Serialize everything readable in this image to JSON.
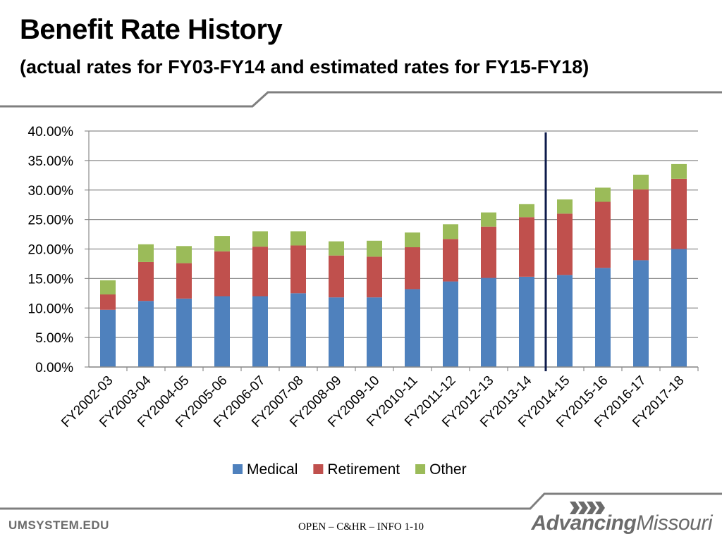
{
  "slide": {
    "title": "Benefit Rate History",
    "subtitle": "(actual rates for FY03-FY14 and estimated rates for FY15-FY18)",
    "footer_left": "UMSYSTEM.EDU",
    "footer_center": "OPEN – C&HR – INFO 1-10",
    "brand_part1": "Advancing",
    "brand_part2": "Missouri"
  },
  "colors": {
    "medical": "#4f81bd",
    "retirement": "#c0504d",
    "other": "#9bbb59",
    "divider_line": "#0d1b4b",
    "grid": "#8c8c8c",
    "rule": "#7f7f7f"
  },
  "chart_data": {
    "type": "bar",
    "stacked": true,
    "categories": [
      "FY2002-03",
      "FY2003-04",
      "FY2004-05",
      "FY2005-06",
      "FY2006-07",
      "FY2007-08",
      "FY2008-09",
      "FY2009-10",
      "FY2010-11",
      "FY2011-12",
      "FY2012-13",
      "FY2013-14",
      "FY2014-15",
      "FY2015-16",
      "FY2016-17",
      "FY2017-18"
    ],
    "series": [
      {
        "name": "Medical",
        "values": [
          9.7,
          11.2,
          11.6,
          12.0,
          12.0,
          12.5,
          11.8,
          11.8,
          13.2,
          14.5,
          15.1,
          15.3,
          15.6,
          16.8,
          18.1,
          20.0
        ]
      },
      {
        "name": "Retirement",
        "values": [
          2.6,
          6.6,
          6.0,
          7.6,
          8.4,
          8.1,
          7.1,
          6.9,
          7.1,
          7.2,
          8.7,
          10.1,
          10.4,
          11.2,
          12.0,
          11.9
        ]
      },
      {
        "name": "Other",
        "values": [
          2.4,
          3.0,
          2.9,
          2.6,
          2.6,
          2.4,
          2.4,
          2.7,
          2.5,
          2.5,
          2.4,
          2.2,
          2.4,
          2.4,
          2.5,
          2.5
        ]
      }
    ],
    "ylim": [
      0,
      40
    ],
    "yticks": [
      "0.00%",
      "5.00%",
      "10.00%",
      "15.00%",
      "20.00%",
      "25.00%",
      "30.00%",
      "35.00%",
      "40.00%"
    ],
    "ytick_values": [
      0,
      5,
      10,
      15,
      20,
      25,
      30,
      35,
      40
    ],
    "actual_estimate_divider_after": "FY2013-14",
    "grid": true,
    "legend_position": "bottom",
    "title": "",
    "xlabel": "",
    "ylabel": ""
  }
}
